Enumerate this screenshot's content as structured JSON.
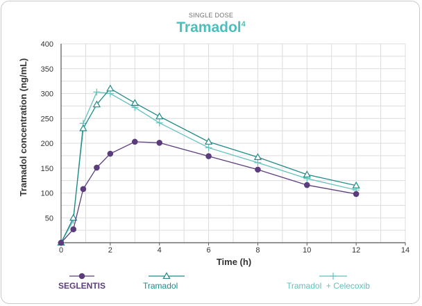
{
  "header": {
    "supertitle": "SINGLE DOSE",
    "title": "Tramadol",
    "title_sup": "4"
  },
  "colors": {
    "seglentis": "#5b3d7d",
    "tramadol": "#1f8a86",
    "tramadol_celecoxib": "#5fc2bd",
    "grid": "#dcdcdc",
    "axis": "#555555"
  },
  "chart_data": {
    "type": "line",
    "xlabel": "Time (h)",
    "ylabel": "Tramadol concentration (ng/mL)",
    "xlim": [
      0,
      14
    ],
    "ylim": [
      0,
      400
    ],
    "x_ticks": [
      0,
      2,
      4,
      6,
      8,
      10,
      12,
      14
    ],
    "y_ticks": [
      50,
      100,
      150,
      200,
      250,
      300,
      350,
      400
    ],
    "grid": true,
    "legend_position": "bottom",
    "series": [
      {
        "name": "SEGLENTIS",
        "marker": "circle",
        "color": "#5b3d7d",
        "x": [
          0,
          0.5,
          0.9,
          1.45,
          2,
          3,
          4,
          6,
          8,
          10,
          12
        ],
        "y": [
          0,
          27,
          108,
          151,
          179,
          203,
          201,
          174,
          147,
          116,
          98
        ]
      },
      {
        "name": "Tramadol",
        "marker": "triangle",
        "color": "#1f8a86",
        "x": [
          0,
          0.5,
          0.9,
          1.45,
          2,
          3,
          4,
          6,
          8,
          10,
          12
        ],
        "y": [
          0,
          50,
          230,
          278,
          310,
          281,
          254,
          203,
          172,
          137,
          115
        ]
      },
      {
        "name": "Tramadol  + Celecoxib",
        "marker": "plus",
        "color": "#5fc2bd",
        "x": [
          0,
          0.5,
          0.9,
          1.45,
          2,
          3,
          4,
          6,
          8,
          10,
          12
        ],
        "y": [
          0,
          45,
          240,
          303,
          300,
          272,
          241,
          191,
          161,
          129,
          106
        ]
      }
    ]
  }
}
